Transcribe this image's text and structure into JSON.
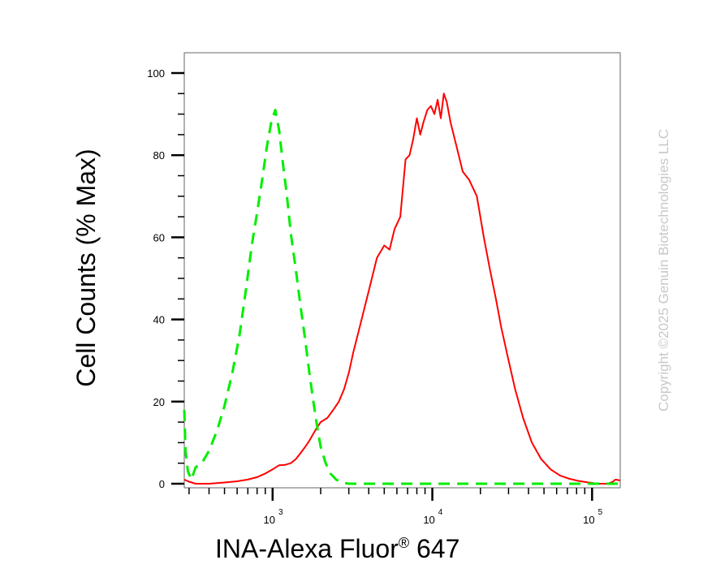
{
  "chart_data": {
    "type": "line",
    "xlabel": "INA-Alexa Fluor",
    "xlabel_sup": "®",
    "xlabel_suffix": " 647",
    "ylabel": "Cell Counts (% Max)",
    "x_scale": "log",
    "xlim": [
      280,
      150000
    ],
    "ylim": [
      0,
      105
    ],
    "y_ticks": [
      0,
      20,
      40,
      60,
      80,
      100
    ],
    "x_ticks": [
      {
        "value": 1000,
        "base": "10",
        "exp": "3"
      },
      {
        "value": 10000,
        "base": "10",
        "exp": "4"
      },
      {
        "value": 100000,
        "base": "10",
        "exp": "5"
      }
    ],
    "grid": false,
    "legend": "none",
    "watermark": "Copyright ©2025 Genuin Biotechnologies LLC",
    "series": [
      {
        "color": "#ff0000",
        "dash": "solid",
        "points": [
          [
            280,
            1
          ],
          [
            300,
            0.5
          ],
          [
            330,
            0
          ],
          [
            400,
            0
          ],
          [
            500,
            0.3
          ],
          [
            600,
            0.6
          ],
          [
            700,
            1
          ],
          [
            800,
            1.6
          ],
          [
            900,
            2.5
          ],
          [
            1000,
            3.5
          ],
          [
            1100,
            4.5
          ],
          [
            1200,
            4.6
          ],
          [
            1300,
            5
          ],
          [
            1400,
            6
          ],
          [
            1500,
            7.5
          ],
          [
            1600,
            9
          ],
          [
            1700,
            10.5
          ],
          [
            1850,
            13
          ],
          [
            2000,
            15
          ],
          [
            2200,
            16
          ],
          [
            2400,
            18
          ],
          [
            2600,
            20
          ],
          [
            2800,
            23
          ],
          [
            3000,
            27
          ],
          [
            3200,
            32
          ],
          [
            3500,
            38
          ],
          [
            4000,
            47
          ],
          [
            4500,
            55
          ],
          [
            5000,
            58
          ],
          [
            5400,
            57
          ],
          [
            5800,
            62
          ],
          [
            6300,
            65
          ],
          [
            6800,
            79
          ],
          [
            7200,
            80
          ],
          [
            7600,
            84
          ],
          [
            8000,
            89
          ],
          [
            8400,
            85
          ],
          [
            8800,
            88
          ],
          [
            9300,
            91
          ],
          [
            9800,
            92
          ],
          [
            10300,
            90
          ],
          [
            10800,
            93.5
          ],
          [
            11300,
            89
          ],
          [
            11800,
            95
          ],
          [
            12300,
            93
          ],
          [
            13000,
            88
          ],
          [
            14000,
            83
          ],
          [
            15500,
            76
          ],
          [
            17000,
            74
          ],
          [
            19000,
            70
          ],
          [
            21000,
            60
          ],
          [
            23000,
            52
          ],
          [
            25000,
            45
          ],
          [
            27000,
            38
          ],
          [
            30000,
            30
          ],
          [
            33000,
            23
          ],
          [
            37000,
            16
          ],
          [
            42000,
            10
          ],
          [
            48000,
            6
          ],
          [
            55000,
            3.5
          ],
          [
            63000,
            2
          ],
          [
            72000,
            1.2
          ],
          [
            82000,
            0.7
          ],
          [
            95000,
            0.3
          ],
          [
            110000,
            0
          ],
          [
            125000,
            0
          ],
          [
            135000,
            0.5
          ],
          [
            140000,
            1
          ],
          [
            150000,
            0.8
          ]
        ]
      },
      {
        "color": "#00ee00",
        "dash": "dashed",
        "points": [
          [
            280,
            18
          ],
          [
            285,
            8
          ],
          [
            295,
            3
          ],
          [
            310,
            1
          ],
          [
            330,
            4
          ],
          [
            360,
            5
          ],
          [
            400,
            8
          ],
          [
            450,
            13
          ],
          [
            500,
            19
          ],
          [
            560,
            27
          ],
          [
            620,
            36
          ],
          [
            680,
            47
          ],
          [
            740,
            58
          ],
          [
            800,
            66
          ],
          [
            860,
            74
          ],
          [
            920,
            82
          ],
          [
            980,
            88
          ],
          [
            1040,
            91
          ],
          [
            1100,
            86
          ],
          [
            1160,
            78
          ],
          [
            1230,
            70
          ],
          [
            1300,
            61
          ],
          [
            1400,
            52
          ],
          [
            1500,
            43
          ],
          [
            1600,
            35
          ],
          [
            1700,
            27
          ],
          [
            1800,
            20
          ],
          [
            1900,
            14
          ],
          [
            2000,
            9
          ],
          [
            2150,
            5
          ],
          [
            2300,
            2.5
          ],
          [
            2500,
            1
          ],
          [
            2700,
            0.3
          ],
          [
            3000,
            0
          ],
          [
            10000,
            0
          ],
          [
            100000,
            0
          ],
          [
            150000,
            0
          ]
        ]
      }
    ]
  }
}
